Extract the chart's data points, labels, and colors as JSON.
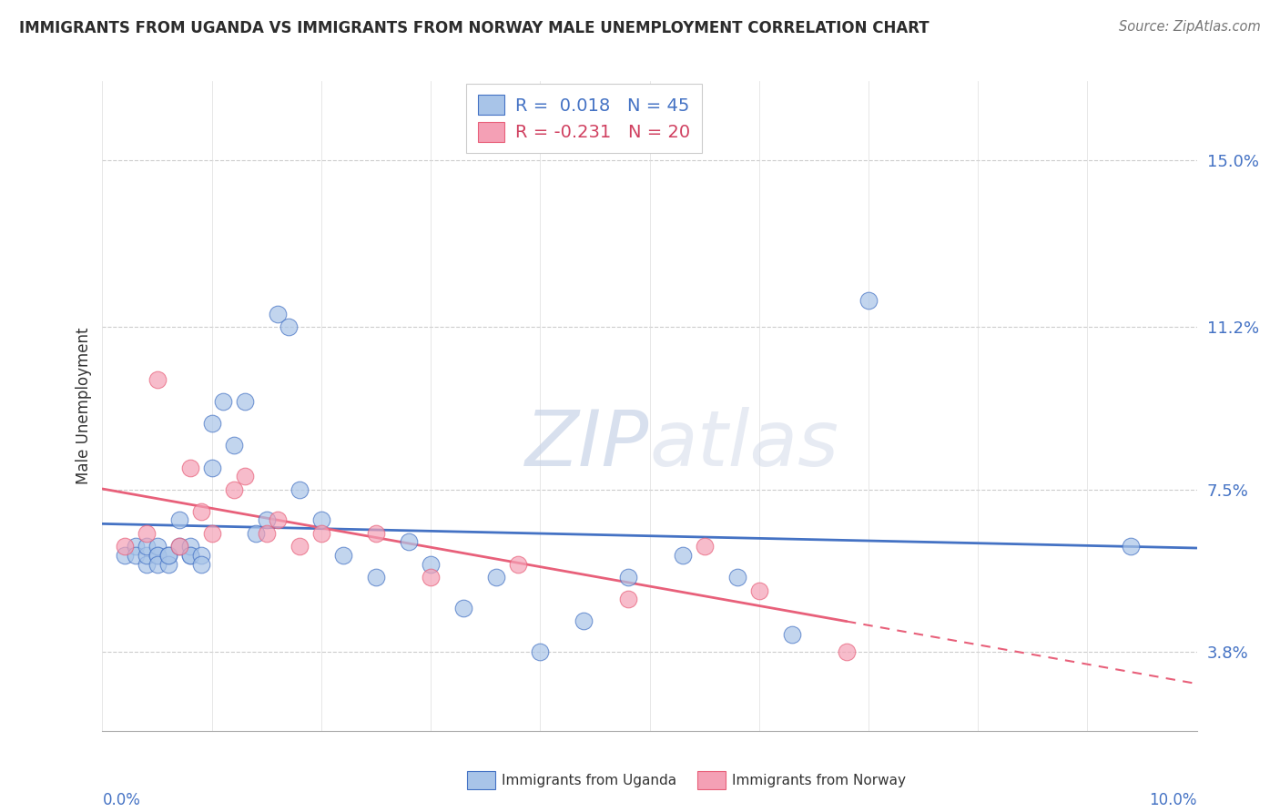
{
  "title": "IMMIGRANTS FROM UGANDA VS IMMIGRANTS FROM NORWAY MALE UNEMPLOYMENT CORRELATION CHART",
  "source": "Source: ZipAtlas.com",
  "ylabel": "Male Unemployment",
  "yticks": [
    0.038,
    0.075,
    0.112,
    0.15
  ],
  "ytick_labels": [
    "3.8%",
    "7.5%",
    "11.2%",
    "15.0%"
  ],
  "xlim": [
    0.0,
    0.1
  ],
  "ylim": [
    0.02,
    0.168
  ],
  "color_uganda": "#A8C4E8",
  "color_norway": "#F4A0B5",
  "color_uganda_line": "#4472C4",
  "color_norway_line": "#E8607A",
  "watermark_zip": "ZIP",
  "watermark_atlas": "atlas",
  "uganda_x": [
    0.002,
    0.003,
    0.003,
    0.004,
    0.004,
    0.004,
    0.005,
    0.005,
    0.005,
    0.005,
    0.006,
    0.006,
    0.006,
    0.007,
    0.007,
    0.008,
    0.008,
    0.008,
    0.009,
    0.009,
    0.01,
    0.01,
    0.011,
    0.012,
    0.013,
    0.014,
    0.015,
    0.016,
    0.017,
    0.018,
    0.02,
    0.022,
    0.025,
    0.028,
    0.03,
    0.033,
    0.036,
    0.04,
    0.044,
    0.048,
    0.053,
    0.058,
    0.063,
    0.07,
    0.094
  ],
  "uganda_y": [
    0.06,
    0.062,
    0.06,
    0.058,
    0.06,
    0.062,
    0.06,
    0.062,
    0.06,
    0.058,
    0.06,
    0.058,
    0.06,
    0.062,
    0.068,
    0.06,
    0.062,
    0.06,
    0.06,
    0.058,
    0.08,
    0.09,
    0.095,
    0.085,
    0.095,
    0.065,
    0.068,
    0.115,
    0.112,
    0.075,
    0.068,
    0.06,
    0.055,
    0.063,
    0.058,
    0.048,
    0.055,
    0.038,
    0.045,
    0.055,
    0.06,
    0.055,
    0.042,
    0.118,
    0.062
  ],
  "norway_x": [
    0.002,
    0.004,
    0.005,
    0.007,
    0.008,
    0.009,
    0.01,
    0.012,
    0.013,
    0.015,
    0.016,
    0.018,
    0.02,
    0.025,
    0.03,
    0.038,
    0.048,
    0.055,
    0.06,
    0.068
  ],
  "norway_y": [
    0.062,
    0.065,
    0.1,
    0.062,
    0.08,
    0.07,
    0.065,
    0.075,
    0.078,
    0.065,
    0.068,
    0.062,
    0.065,
    0.065,
    0.055,
    0.058,
    0.05,
    0.062,
    0.052,
    0.038
  ],
  "norway_line_solid_end": 0.068
}
